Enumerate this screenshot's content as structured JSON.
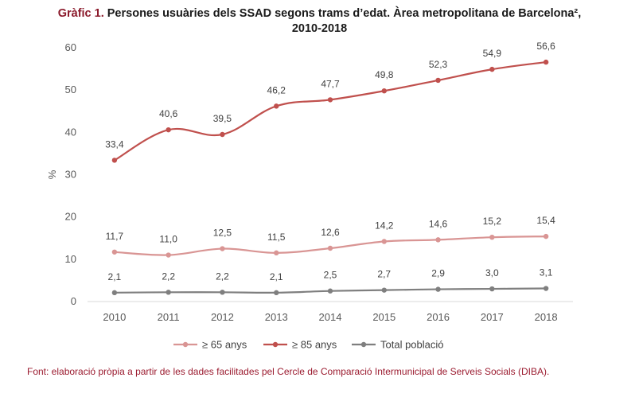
{
  "title": {
    "lead": "Gràfic 1.",
    "line1": "Persones usuàries dels SSAD segons trams d’edat. Àrea metropolitana de Barcelona²,",
    "line2": "2010-2018"
  },
  "source": "Font: elaboració pròpia a partir de les dades facilitades pel Cercle de Comparació Intermunicipal de Serveis Socials (DIBA).",
  "chart_data": {
    "type": "line",
    "title": "Gràfic 1. Persones usuàries dels SSAD segons trams d’edat. Àrea metropolitana de Barcelona², 2010-2018",
    "xlabel": "",
    "ylabel": "%",
    "x": [
      "2010",
      "2011",
      "2012",
      "2013",
      "2014",
      "2015",
      "2016",
      "2017",
      "2018"
    ],
    "ylim": [
      0,
      60
    ],
    "yticks": [
      0,
      10,
      20,
      30,
      40,
      50,
      60
    ],
    "grid": false,
    "legend": "bottom",
    "series": [
      {
        "name": "≥ 65 anys",
        "color": "#d99594",
        "values": [
          11.7,
          11.0,
          12.5,
          11.5,
          12.6,
          14.2,
          14.6,
          15.2,
          15.4
        ],
        "labels": [
          "11,7",
          "11,0",
          "12,5",
          "11,5",
          "12,6",
          "14,2",
          "14,6",
          "15,2",
          "15,4"
        ]
      },
      {
        "name": "≥ 85 anys",
        "color": "#c0504d",
        "values": [
          33.4,
          40.6,
          39.5,
          46.2,
          47.7,
          49.8,
          52.3,
          54.9,
          56.6
        ],
        "labels": [
          "33,4",
          "40,6",
          "39,5",
          "46,2",
          "47,7",
          "49,8",
          "52,3",
          "54,9",
          "56,6"
        ]
      },
      {
        "name": "Total població",
        "color": "#7f7f7f",
        "values": [
          2.1,
          2.2,
          2.2,
          2.1,
          2.5,
          2.7,
          2.9,
          3.0,
          3.1
        ],
        "labels": [
          "2,1",
          "2,2",
          "2,2",
          "2,1",
          "2,5",
          "2,7",
          "2,9",
          "3,0",
          "3,1"
        ]
      }
    ]
  }
}
